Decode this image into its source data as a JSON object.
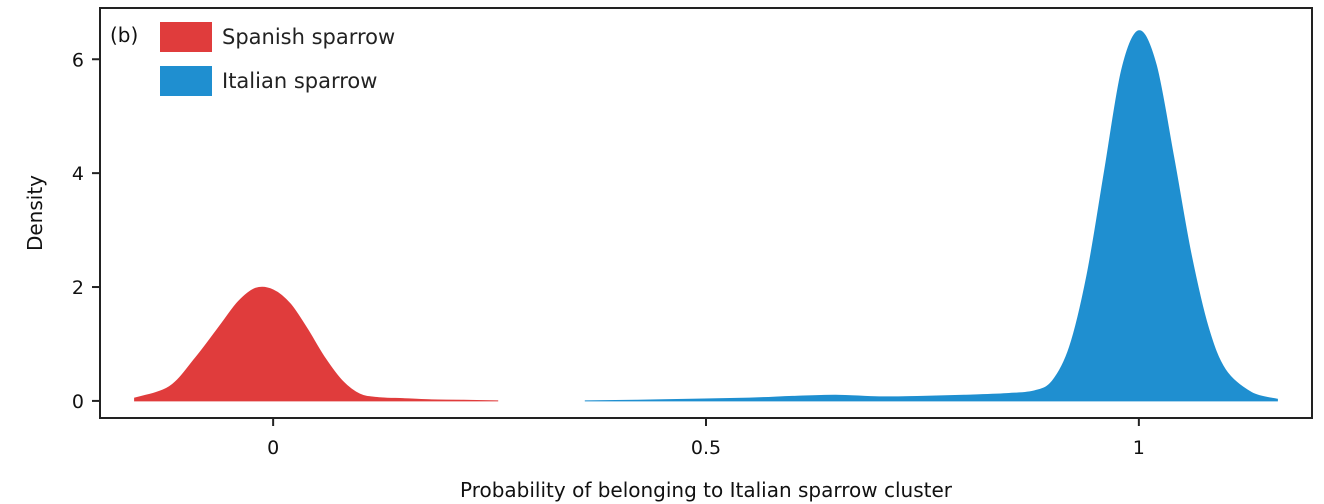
{
  "chart_data": {
    "type": "area",
    "panel_label": "(b)",
    "xlabel": "Probability of belonging to Italian sparrow cluster",
    "ylabel": "Density",
    "xlim": [
      -0.2,
      1.2
    ],
    "ylim": [
      -0.3,
      6.9
    ],
    "x_ticks": [
      0,
      0.5,
      1
    ],
    "x_tick_labels": [
      "0",
      "0.5",
      "1"
    ],
    "y_ticks": [
      0,
      2,
      4,
      6
    ],
    "y_tick_labels": [
      "0",
      "2",
      "4",
      "6"
    ],
    "grid": false,
    "legend_position": "top-left",
    "series": [
      {
        "name": "Spanish sparrow",
        "color": "#e03c3c",
        "x": [
          -0.16,
          -0.12,
          -0.09,
          -0.06,
          -0.04,
          -0.02,
          0.0,
          0.02,
          0.04,
          0.06,
          0.08,
          0.1,
          0.12,
          0.15,
          0.18,
          0.22,
          0.26
        ],
        "y": [
          0.05,
          0.25,
          0.75,
          1.35,
          1.75,
          1.98,
          1.95,
          1.7,
          1.25,
          0.75,
          0.35,
          0.12,
          0.06,
          0.04,
          0.02,
          0.01,
          0.0
        ]
      },
      {
        "name": "Italian sparrow",
        "color": "#1f8fd0",
        "x": [
          0.36,
          0.45,
          0.55,
          0.6,
          0.65,
          0.7,
          0.75,
          0.8,
          0.85,
          0.88,
          0.9,
          0.92,
          0.94,
          0.96,
          0.98,
          1.0,
          1.02,
          1.04,
          1.06,
          1.08,
          1.1,
          1.13,
          1.16
        ],
        "y": [
          0.0,
          0.02,
          0.05,
          0.08,
          0.1,
          0.07,
          0.08,
          0.1,
          0.13,
          0.18,
          0.35,
          0.95,
          2.2,
          4.0,
          5.8,
          6.5,
          5.9,
          4.3,
          2.6,
          1.3,
          0.55,
          0.15,
          0.03
        ]
      }
    ]
  }
}
